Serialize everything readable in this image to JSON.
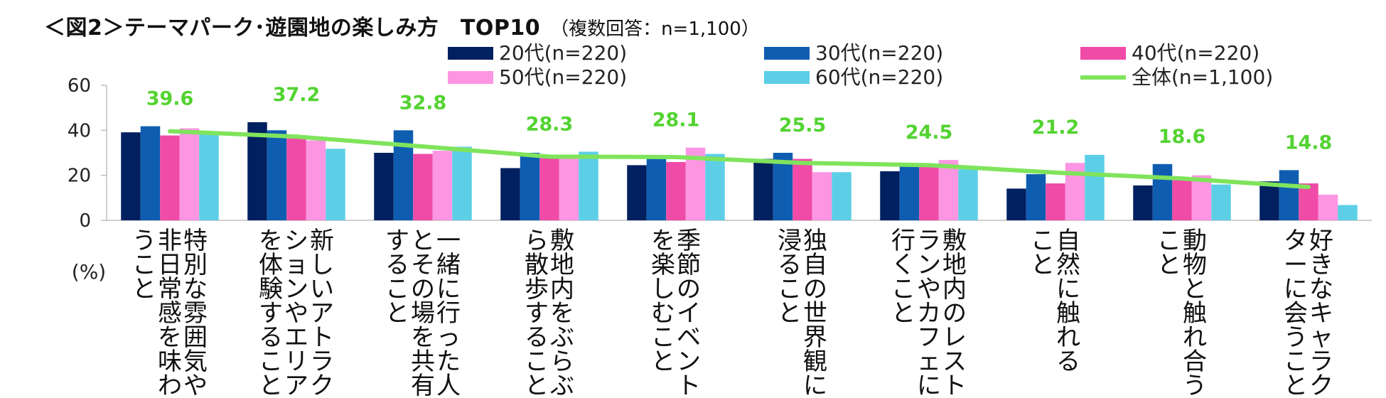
{
  "title": "＜図2＞テーマパーク･遊園地の楽しみ方　TOP10",
  "subtitle": "（複数回答：n=1,100）",
  "chart_data": {
    "type": "bar",
    "title": "＜図2＞テーマパーク･遊園地の楽しみ方　TOP10",
    "subtitle": "（複数回答：n=1,100）",
    "ylabel": "(%)",
    "ylim": [
      0,
      60
    ],
    "yticks": [
      "0",
      "20",
      "40",
      "60"
    ],
    "grid": false,
    "legend_position": "top-right",
    "categories": [
      [
        "特別な雰囲気や",
        "非日常感を味わ",
        "うこと"
      ],
      [
        "新しいアトラク",
        "ションやエリア",
        "を体験すること"
      ],
      [
        "一緒に行った人",
        "とその場を共有",
        "すること"
      ],
      [
        "敷地内をぶらぶ",
        "ら散歩すること"
      ],
      [
        "季節のイベント",
        "を楽しむこと"
      ],
      [
        "独自の世界観に",
        "浸ること"
      ],
      [
        "敷地内のレスト",
        "ランやカフェに",
        "行くこと"
      ],
      [
        "自然に触れる",
        "こと"
      ],
      [
        "動物と触れ合う",
        "こと"
      ],
      [
        "好きなキャラク",
        "ターに会うこと"
      ]
    ],
    "series": [
      {
        "name": "20代(n=220)",
        "type": "bar",
        "color": "#002060",
        "values": [
          39.1,
          43.6,
          30.0,
          23.2,
          24.5,
          27.3,
          21.8,
          14.1,
          15.5,
          17.3
        ]
      },
      {
        "name": "30代(n=220)",
        "type": "bar",
        "color": "#0f5db1",
        "values": [
          41.8,
          40.0,
          40.0,
          30.0,
          27.3,
          30.0,
          25.0,
          20.5,
          25.0,
          22.3
        ]
      },
      {
        "name": "40代(n=220)",
        "type": "bar",
        "color": "#f04ba6",
        "values": [
          37.7,
          36.4,
          29.5,
          29.1,
          25.9,
          27.3,
          24.5,
          16.4,
          18.2,
          16.4
        ]
      },
      {
        "name": "50代(n=220)",
        "type": "bar",
        "color": "#fc96e3",
        "values": [
          40.9,
          35.5,
          30.9,
          28.6,
          32.3,
          21.4,
          26.8,
          25.5,
          20.0,
          11.4
        ]
      },
      {
        "name": "60代(n=220)",
        "type": "bar",
        "color": "#5ccfe6",
        "values": [
          38.6,
          31.8,
          32.7,
          30.5,
          29.5,
          21.4,
          22.7,
          29.1,
          15.9,
          6.8
        ]
      },
      {
        "name": "全体(n=1,100)",
        "type": "line",
        "color": "#7fe45c",
        "values": [
          39.6,
          37.2,
          32.8,
          28.3,
          28.1,
          25.5,
          24.5,
          21.2,
          18.6,
          14.8
        ]
      }
    ],
    "data_labels": [
      "39.6",
      "37.2",
      "32.8",
      "28.3",
      "28.1",
      "25.5",
      "24.5",
      "21.2",
      "18.6",
      "14.8"
    ]
  }
}
